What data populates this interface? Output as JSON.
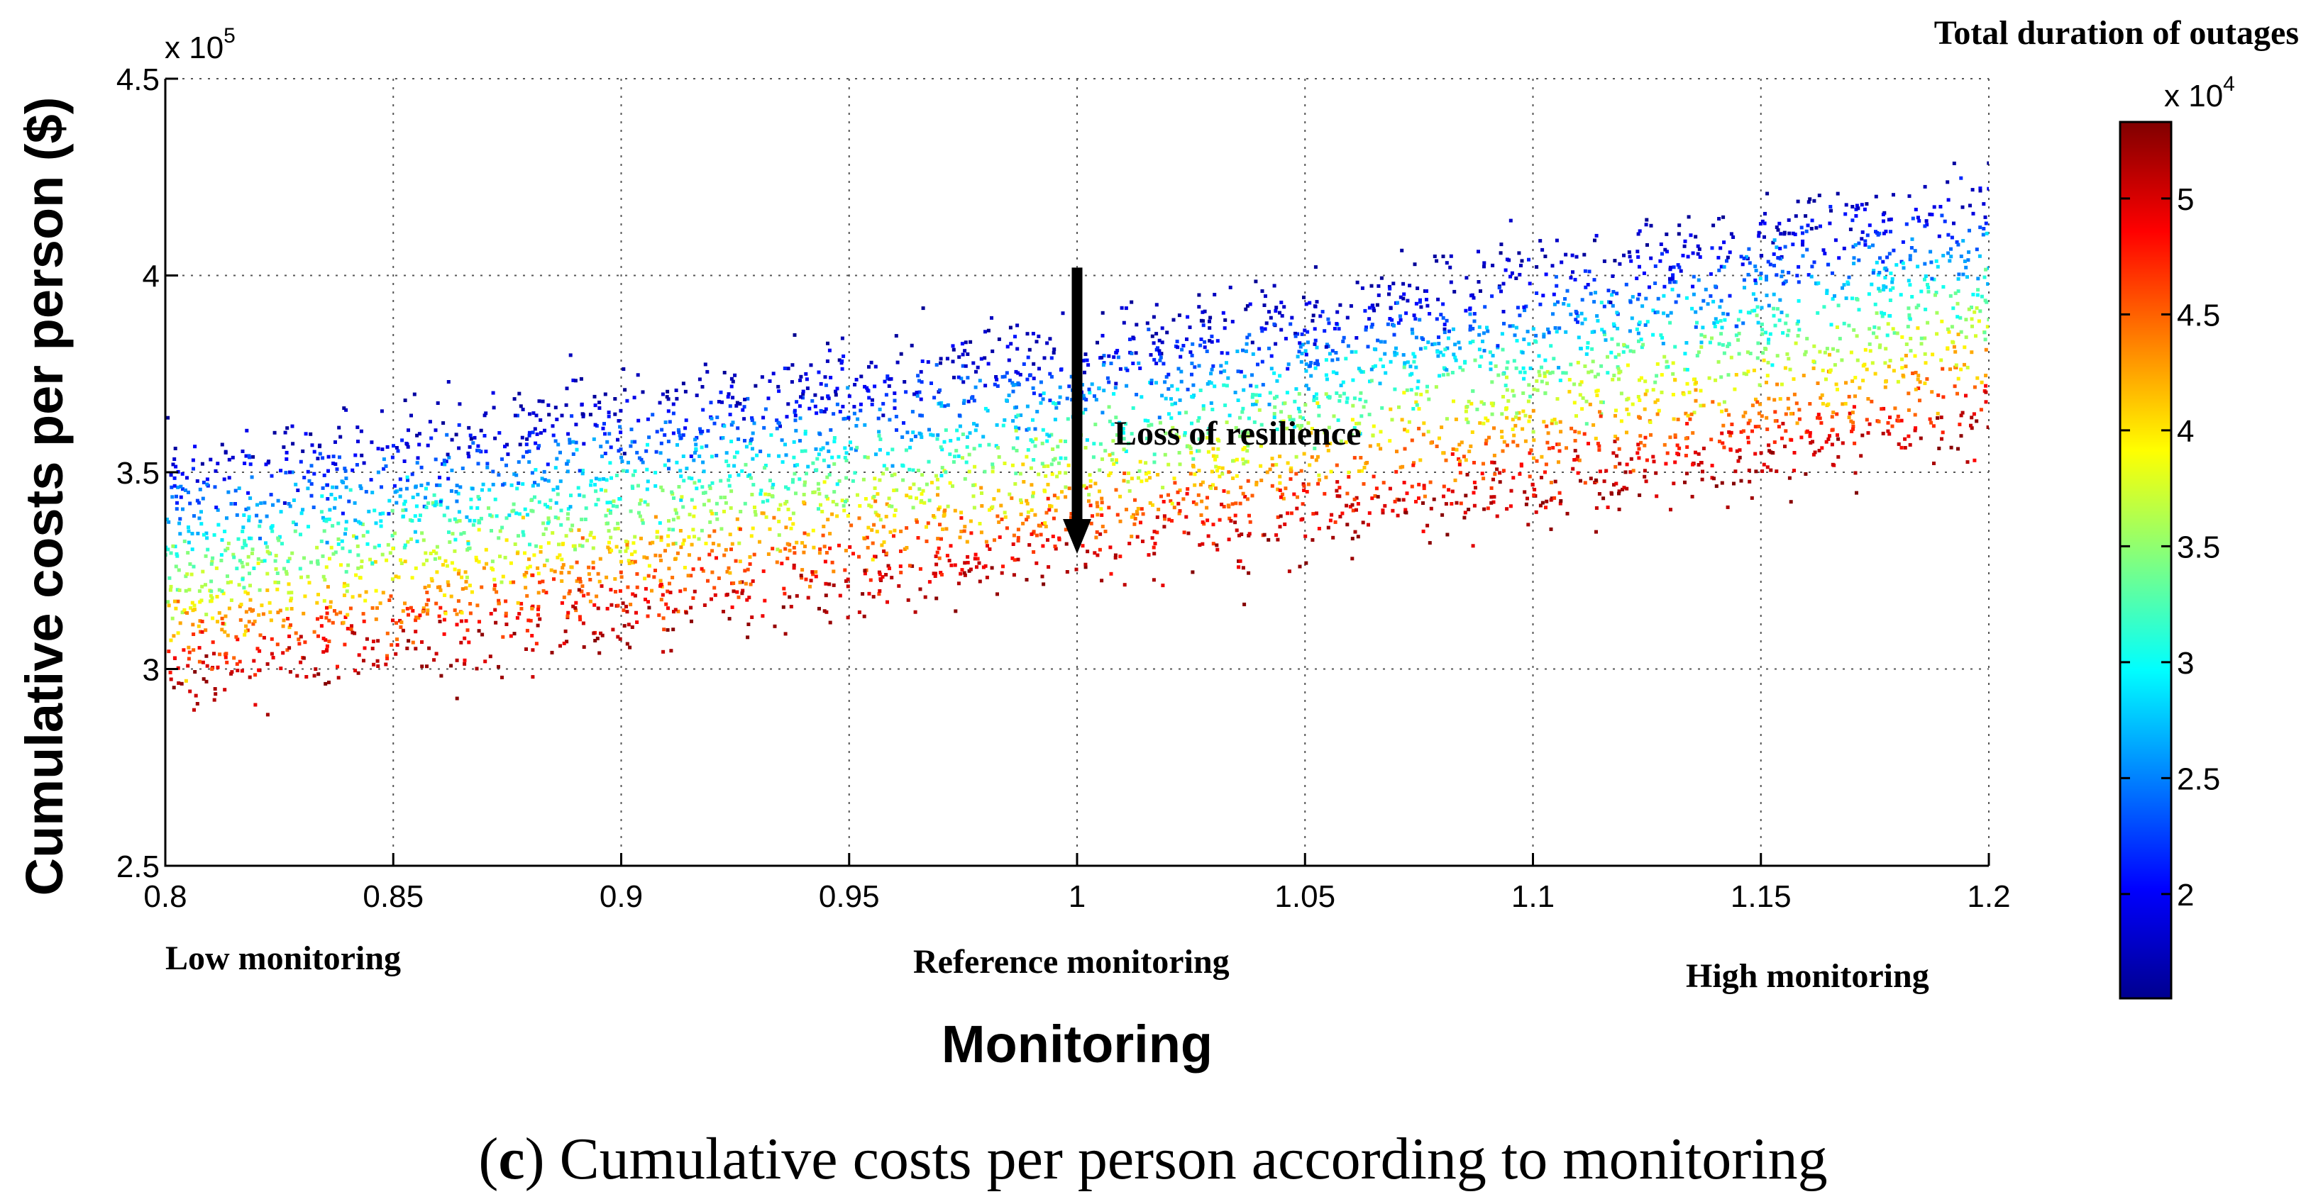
{
  "chart_data": {
    "type": "scatter",
    "xlabel": "Monitoring",
    "ylabel": "Cumulative costs per person ($)",
    "xlim": [
      0.8,
      1.2
    ],
    "ylim": [
      250000,
      450000
    ],
    "x_ticks": [
      0.8,
      0.85,
      0.9,
      0.95,
      1.0,
      1.05,
      1.1,
      1.15,
      1.2
    ],
    "x_tick_labels": [
      "0.8",
      "0.85",
      "0.9",
      "0.95",
      "1",
      "1.05",
      "1.1",
      "1.15",
      "1.2"
    ],
    "y_ticks": [
      250000,
      300000,
      350000,
      400000,
      450000
    ],
    "y_tick_labels": [
      "2.5",
      "3",
      "3.5",
      "4",
      "4.5"
    ],
    "y_exponent_label": "x 10",
    "y_exponent": "5",
    "grid": true,
    "colorbar": {
      "title": "Total duration of outages",
      "exponent_label": "x 10",
      "exponent": "4",
      "range": [
        15500,
        53300
      ],
      "ticks": [
        20000,
        25000,
        30000,
        35000,
        40000,
        45000,
        50000
      ],
      "tick_labels": [
        "2",
        "2.5",
        "3",
        "3.5",
        "4",
        "4.5",
        "5"
      ],
      "colormap": "jet",
      "colors": [
        "#00008f",
        "#0000ff",
        "#0080ff",
        "#00ffff",
        "#80ff80",
        "#ffff00",
        "#ff8000",
        "#ff0000",
        "#800000"
      ]
    },
    "series_model": {
      "description": "Cloud of simulated runs; cost rises with monitoring and falls with outage duration",
      "cost_at_low_duration": {
        "0.8": 355000,
        "1.0": 385000,
        "1.2": 425000
      },
      "cost_at_high_duration": {
        "0.8": 293000,
        "1.0": 325000,
        "1.2": 357000
      },
      "point_count": 5200
    },
    "annotations": [
      {
        "text": "Loss of resilience",
        "arrow_x": 1.0,
        "arrow_from_y": 402000,
        "arrow_to_y": 330000
      },
      {
        "text": "Low monitoring",
        "x": 0.8
      },
      {
        "text": "Reference monitoring",
        "x": 1.0
      },
      {
        "text": "High monitoring",
        "x": 1.2
      }
    ],
    "caption_bold": "c",
    "caption_open": "(",
    "caption_rest": ") Cumulative costs per person according to monitoring"
  }
}
